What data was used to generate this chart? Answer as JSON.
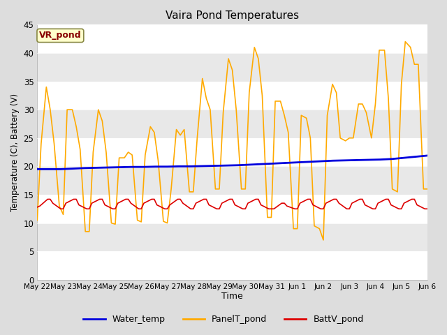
{
  "title": "Vaira Pond Temperatures",
  "xlabel": "Time",
  "ylabel": "Temperature (C), Battery (V)",
  "ylim": [
    0,
    45
  ],
  "yticks": [
    0,
    5,
    10,
    15,
    20,
    25,
    30,
    35,
    40,
    45
  ],
  "xtick_labels": [
    "May 22",
    "May 23",
    "May 24",
    "May 25",
    "May 26",
    "May 27",
    "May 28",
    "May 29",
    "May 30",
    "May 31",
    "Jun 1",
    "Jun 2",
    "Jun 3",
    "Jun 4",
    "Jun 5",
    "Jun 6"
  ],
  "subtitle_box": "VR_pond",
  "subtitle_box_color": "#ffffcc",
  "subtitle_box_border": "#888844",
  "subtitle_text_color": "#880000",
  "water_temp_color": "#0000dd",
  "panel_temp_color": "#ffaa00",
  "batt_color": "#dd0000",
  "bg_color": "#dddddd",
  "band_light": "#e8e8e8",
  "band_dark": "#d0d0d0",
  "grid_color": "#ffffff",
  "water_temp": [
    19.5,
    19.5,
    19.5,
    19.6,
    19.7,
    19.75,
    19.8,
    19.85,
    19.9,
    19.9,
    19.95,
    19.95,
    20.0,
    20.0,
    20.05,
    20.1,
    20.15,
    20.2,
    20.3,
    20.4,
    20.5,
    20.6,
    20.7,
    20.8,
    20.9,
    21.0,
    21.05,
    21.1,
    21.15,
    21.2,
    21.3,
    21.5,
    21.7,
    21.9
  ],
  "panel_temp_x": [
    0.0,
    0.15,
    0.35,
    0.5,
    0.65,
    0.85,
    1.0,
    1.15,
    1.35,
    1.5,
    1.65,
    1.85,
    2.0,
    2.15,
    2.35,
    2.5,
    2.65,
    2.85,
    3.0,
    3.15,
    3.35,
    3.5,
    3.65,
    3.85,
    4.0,
    4.15,
    4.35,
    4.5,
    4.65,
    4.85,
    5.0,
    5.15,
    5.35,
    5.5,
    5.65,
    5.85,
    6.0,
    6.15,
    6.35,
    6.5,
    6.65,
    6.85,
    7.0,
    7.15,
    7.35,
    7.5,
    7.65,
    7.85,
    8.0,
    8.15,
    8.35,
    8.5,
    8.65,
    8.85,
    9.0,
    9.15,
    9.35,
    9.5,
    9.65,
    9.85,
    10.0,
    10.15,
    10.35,
    10.5,
    10.65,
    10.85,
    11.0,
    11.15,
    11.35,
    11.5,
    11.65,
    11.85,
    12.0,
    12.15,
    12.35,
    12.5,
    12.65,
    12.85,
    13.0,
    13.15,
    13.35,
    13.5,
    13.65,
    13.85,
    14.0,
    14.15,
    14.35,
    14.5,
    14.65,
    14.85,
    15.0
  ],
  "panel_temp_y": [
    10.5,
    24.0,
    34.0,
    30.0,
    24.0,
    13.0,
    11.5,
    30.0,
    30.0,
    27.0,
    23.0,
    8.5,
    8.5,
    22.5,
    30.0,
    28.0,
    22.5,
    10.0,
    9.8,
    21.5,
    21.5,
    22.5,
    22.0,
    10.5,
    10.2,
    22.0,
    27.0,
    26.0,
    21.0,
    10.3,
    10.0,
    16.0,
    26.5,
    25.5,
    26.5,
    15.5,
    15.5,
    25.0,
    35.5,
    32.0,
    30.0,
    16.0,
    16.0,
    29.5,
    39.0,
    37.0,
    30.0,
    16.0,
    16.0,
    33.0,
    41.0,
    39.0,
    32.5,
    11.0,
    11.0,
    31.5,
    31.5,
    29.0,
    26.0,
    9.0,
    9.0,
    29.0,
    28.5,
    25.0,
    9.5,
    9.0,
    7.0,
    29.0,
    34.5,
    33.0,
    25.0,
    24.5,
    25.0,
    25.0,
    31.0,
    31.0,
    29.5,
    25.0,
    31.0,
    40.5,
    40.5,
    32.0,
    16.0,
    15.5,
    34.5,
    42.0,
    41.0,
    38.0,
    38.0,
    16.0,
    16.0
  ],
  "batt_x": [
    0.0,
    0.1,
    0.4,
    0.5,
    0.6,
    0.9,
    1.0,
    1.1,
    1.4,
    1.5,
    1.6,
    1.9,
    2.0,
    2.1,
    2.4,
    2.5,
    2.6,
    2.9,
    3.0,
    3.1,
    3.4,
    3.5,
    3.6,
    3.9,
    4.0,
    4.1,
    4.4,
    4.5,
    4.6,
    4.9,
    5.0,
    5.1,
    5.4,
    5.5,
    5.6,
    5.9,
    6.0,
    6.1,
    6.4,
    6.5,
    6.6,
    6.9,
    7.0,
    7.1,
    7.4,
    7.5,
    7.6,
    7.9,
    8.0,
    8.1,
    8.4,
    8.5,
    8.6,
    8.9,
    9.0,
    9.1,
    9.4,
    9.5,
    9.6,
    9.9,
    10.0,
    10.1,
    10.4,
    10.5,
    10.6,
    10.9,
    11.0,
    11.1,
    11.4,
    11.5,
    11.6,
    11.9,
    12.0,
    12.1,
    12.4,
    12.5,
    12.6,
    12.9,
    13.0,
    13.1,
    13.4,
    13.5,
    13.6,
    13.9,
    14.0,
    14.1,
    14.4,
    14.5,
    14.6,
    14.9,
    15.0
  ],
  "batt_y": [
    12.8,
    13.0,
    14.2,
    14.2,
    13.5,
    12.5,
    12.5,
    13.5,
    14.2,
    14.2,
    13.2,
    12.5,
    12.5,
    13.5,
    14.2,
    14.2,
    13.2,
    12.5,
    12.5,
    13.5,
    14.2,
    14.2,
    13.5,
    12.5,
    12.5,
    13.5,
    14.2,
    14.2,
    13.2,
    12.5,
    12.5,
    13.2,
    14.2,
    14.2,
    13.5,
    12.5,
    12.5,
    13.5,
    14.2,
    14.2,
    13.2,
    12.5,
    12.5,
    13.5,
    14.2,
    14.2,
    13.2,
    12.5,
    12.5,
    13.5,
    14.2,
    14.2,
    13.2,
    12.5,
    12.5,
    12.5,
    13.5,
    13.5,
    13.0,
    12.5,
    12.5,
    13.5,
    14.2,
    14.2,
    13.2,
    12.5,
    12.5,
    13.5,
    14.2,
    14.2,
    13.5,
    12.5,
    12.5,
    13.5,
    14.2,
    14.2,
    13.2,
    12.5,
    12.5,
    13.5,
    14.2,
    14.2,
    13.2,
    12.5,
    12.5,
    13.5,
    14.2,
    14.2,
    13.2,
    12.5,
    12.5
  ]
}
